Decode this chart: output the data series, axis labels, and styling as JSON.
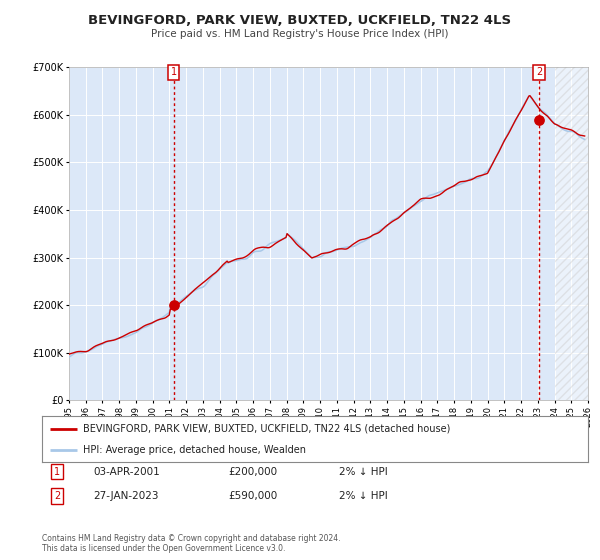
{
  "title": "BEVINGFORD, PARK VIEW, BUXTED, UCKFIELD, TN22 4LS",
  "subtitle": "Price paid vs. HM Land Registry's House Price Index (HPI)",
  "legend_line1": "BEVINGFORD, PARK VIEW, BUXTED, UCKFIELD, TN22 4LS (detached house)",
  "legend_line2": "HPI: Average price, detached house, Wealden",
  "point1_date": "03-APR-2001",
  "point1_price": 200000,
  "point1_hpi": "2% ↓ HPI",
  "point2_date": "27-JAN-2023",
  "point2_price": 590000,
  "point2_hpi": "2% ↓ HPI",
  "footer1": "Contains HM Land Registry data © Crown copyright and database right 2024.",
  "footer2": "This data is licensed under the Open Government Licence v3.0.",
  "xmin": 1995.0,
  "xmax": 2026.0,
  "ymin": 0,
  "ymax": 700000,
  "hpi_color": "#a8c8e8",
  "price_color": "#cc0000",
  "bg_color": "#ffffff",
  "plot_bg": "#dce8f8",
  "grid_color": "#ffffff",
  "vline_color": "#cc0000",
  "point1_x": 2001.25,
  "point2_x": 2023.07,
  "hatch_xmin": 2024.0
}
